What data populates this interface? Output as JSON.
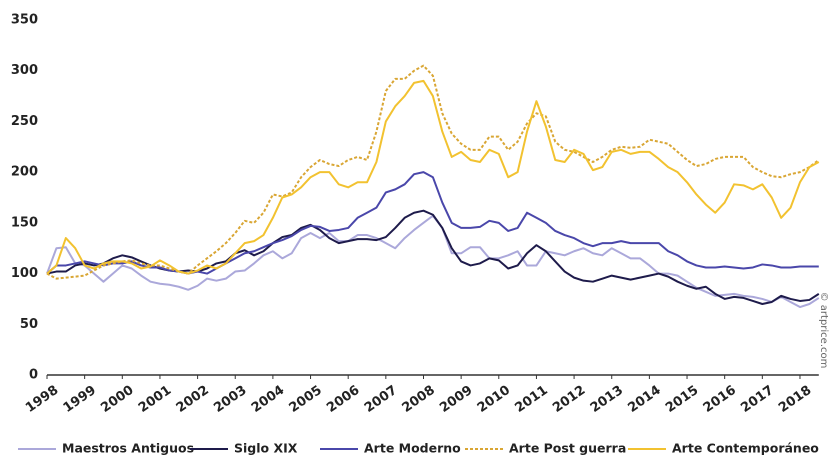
{
  "chart_data": {
    "type": "line",
    "watermark": "© artprice.com",
    "x": [
      1998,
      1998.25,
      1998.5,
      1998.75,
      1999,
      1999.25,
      1999.5,
      1999.75,
      2000,
      2000.25,
      2000.5,
      2000.75,
      2001,
      2001.25,
      2001.5,
      2001.75,
      2002,
      2002.25,
      2002.5,
      2002.75,
      2003,
      2003.25,
      2003.5,
      2003.75,
      2004,
      2004.25,
      2004.5,
      2004.75,
      2005,
      2005.25,
      2005.5,
      2005.75,
      2006,
      2006.25,
      2006.5,
      2006.75,
      2007,
      2007.25,
      2007.5,
      2007.75,
      2008,
      2008.25,
      2008.5,
      2008.75,
      2009,
      2009.25,
      2009.5,
      2009.75,
      2010,
      2010.25,
      2010.5,
      2010.75,
      2011,
      2011.25,
      2011.5,
      2011.75,
      2012,
      2012.25,
      2012.5,
      2012.75,
      2013,
      2013.25,
      2013.5,
      2013.75,
      2014,
      2014.25,
      2014.5,
      2014.75,
      2015,
      2015.25,
      2015.5,
      2015.75,
      2016,
      2016.25,
      2016.5,
      2016.75,
      2017,
      2017.25,
      2017.5,
      2017.75,
      2018,
      2018.25,
      2018.5
    ],
    "xlim": [
      1998,
      2018.5
    ],
    "xticks": [
      1998,
      1999,
      2000,
      2001,
      2002,
      2003,
      2004,
      2005,
      2006,
      2007,
      2008,
      2009,
      2010,
      2011,
      2012,
      2013,
      2014,
      2015,
      2016,
      2017,
      2018
    ],
    "ylim": [
      0,
      350
    ],
    "yticks": [
      0,
      50,
      100,
      150,
      200,
      250,
      300,
      350
    ],
    "grid": false,
    "legend": "bottom",
    "series": [
      {
        "name": "Maestros Antiguos",
        "color": "#aba8da",
        "style": "solid",
        "values": [
          100,
          125,
          126,
          110,
          108,
          100,
          92,
          100,
          108,
          105,
          98,
          92,
          90,
          89,
          87,
          84,
          88,
          95,
          93,
          95,
          102,
          103,
          110,
          118,
          122,
          115,
          120,
          135,
          140,
          135,
          140,
          132,
          132,
          138,
          138,
          135,
          130,
          125,
          135,
          143,
          150,
          157,
          145,
          120,
          120,
          126,
          126,
          115,
          115,
          118,
          122,
          108,
          108,
          122,
          120,
          118,
          122,
          125,
          120,
          118,
          125,
          120,
          115,
          115,
          108,
          100,
          100,
          98,
          92,
          86,
          82,
          78,
          79,
          80,
          78,
          77,
          75,
          72,
          77,
          72,
          67,
          70,
          76
        ]
      },
      {
        "name": "Siglo XIX",
        "color": "#1e1b4b",
        "style": "solid",
        "values": [
          100,
          102,
          102,
          108,
          110,
          108,
          110,
          115,
          118,
          116,
          112,
          108,
          105,
          103,
          102,
          103,
          102,
          105,
          110,
          112,
          120,
          123,
          118,
          122,
          130,
          136,
          138,
          145,
          148,
          143,
          135,
          130,
          132,
          134,
          134,
          133,
          136,
          145,
          155,
          160,
          162,
          158,
          145,
          125,
          112,
          108,
          110,
          115,
          113,
          105,
          108,
          120,
          128,
          122,
          112,
          102,
          96,
          93,
          92,
          95,
          98,
          96,
          94,
          96,
          98,
          100,
          97,
          92,
          88,
          85,
          87,
          80,
          75,
          77,
          76,
          73,
          70,
          72,
          78,
          75,
          73,
          74,
          80
        ]
      },
      {
        "name": "Arte Moderno",
        "color": "#4a47aa",
        "style": "solid",
        "values": [
          100,
          108,
          108,
          110,
          112,
          110,
          108,
          110,
          110,
          112,
          108,
          106,
          106,
          103,
          102,
          100,
          102,
          100,
          105,
          110,
          115,
          120,
          122,
          126,
          130,
          133,
          137,
          143,
          147,
          146,
          142,
          143,
          145,
          155,
          160,
          165,
          180,
          183,
          188,
          198,
          200,
          195,
          170,
          150,
          145,
          145,
          146,
          152,
          150,
          142,
          145,
          160,
          155,
          150,
          142,
          138,
          135,
          130,
          127,
          130,
          130,
          132,
          130,
          130,
          130,
          130,
          122,
          118,
          112,
          108,
          106,
          106,
          107,
          106,
          105,
          106,
          109,
          108,
          106,
          106,
          107,
          107,
          107
        ]
      },
      {
        "name": "Arte Post guerra",
        "color": "#d9a634",
        "style": "dashed",
        "values": [
          100,
          95,
          96,
          97,
          98,
          103,
          108,
          110,
          112,
          113,
          110,
          108,
          108,
          105,
          102,
          100,
          108,
          115,
          122,
          130,
          140,
          152,
          150,
          160,
          178,
          176,
          180,
          195,
          205,
          212,
          208,
          206,
          212,
          215,
          212,
          240,
          280,
          292,
          292,
          300,
          305,
          295,
          258,
          238,
          228,
          222,
          222,
          235,
          235,
          222,
          230,
          248,
          258,
          255,
          230,
          222,
          220,
          215,
          210,
          215,
          222,
          225,
          224,
          225,
          232,
          230,
          228,
          220,
          212,
          206,
          208,
          213,
          215,
          215,
          215,
          205,
          200,
          196,
          195,
          198,
          200,
          205,
          212
        ]
      },
      {
        "name": "Arte Contemporáneo",
        "color": "#f2c230",
        "style": "solid",
        "values": [
          100,
          108,
          135,
          125,
          108,
          105,
          110,
          112,
          112,
          110,
          105,
          107,
          113,
          108,
          102,
          100,
          103,
          108,
          105,
          110,
          120,
          130,
          132,
          138,
          155,
          175,
          178,
          185,
          195,
          200,
          200,
          188,
          185,
          190,
          190,
          210,
          250,
          265,
          275,
          288,
          290,
          275,
          240,
          215,
          220,
          212,
          210,
          222,
          218,
          195,
          200,
          240,
          270,
          245,
          212,
          210,
          222,
          218,
          202,
          205,
          220,
          222,
          218,
          220,
          220,
          213,
          205,
          200,
          190,
          178,
          168,
          160,
          170,
          188,
          187,
          183,
          188,
          175,
          155,
          165,
          190,
          205,
          210
        ]
      }
    ]
  }
}
